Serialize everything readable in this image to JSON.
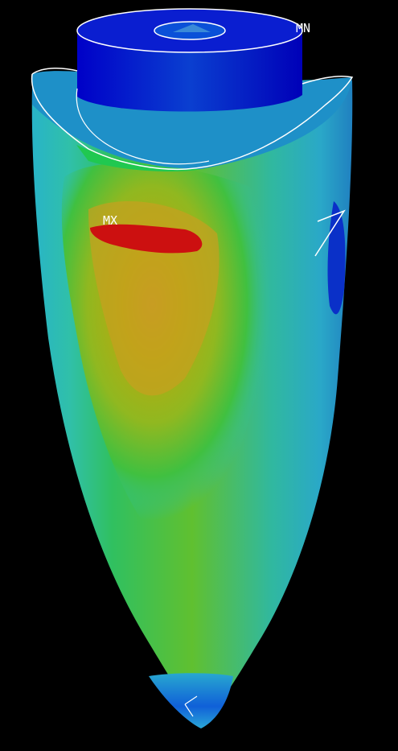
{
  "view": {
    "background_color": "#000000"
  },
  "labels": {
    "max_marker": "MX",
    "min_marker": "MN"
  },
  "colors": {
    "contour_levels": [
      "#0000cd",
      "#0a50d8",
      "#1e90c0",
      "#28b4c8",
      "#30c8a0",
      "#20c850",
      "#80c020",
      "#b4b400",
      "#c89628",
      "#cc6414",
      "#cc1010"
    ],
    "edge_lines": "#ffffff"
  }
}
